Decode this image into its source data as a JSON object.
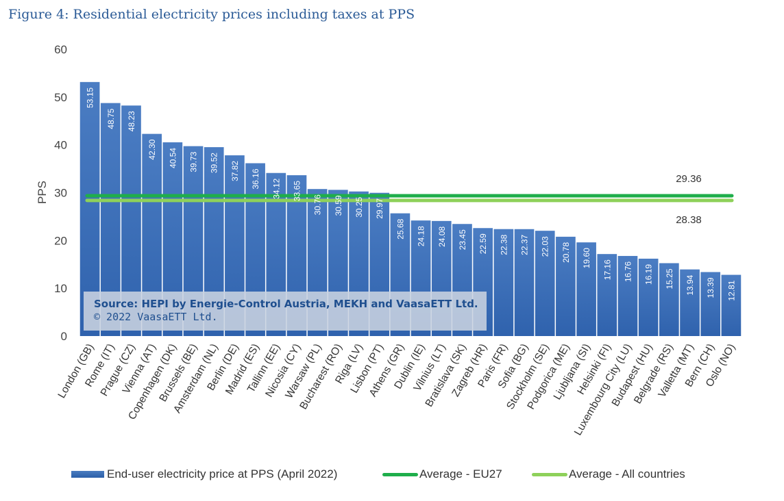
{
  "figure_title": "Figure 4: Residential electricity prices including taxes at PPS",
  "colors": {
    "bar": "#2f62ad",
    "bar_light": "#4b7dc3",
    "eu27_line": "#1fae4b",
    "all_line": "#8ed15a",
    "axis_text": "#444444",
    "source_box": "#c9d3e0",
    "source_text": "#1f4f8f"
  },
  "chart_data": {
    "type": "bar",
    "title": "",
    "xlabel": "",
    "ylabel": "PPS",
    "ylim": [
      0,
      60
    ],
    "yticks": [
      0,
      10,
      20,
      30,
      40,
      50,
      60
    ],
    "grid": false,
    "legend_position": "bottom",
    "categories": [
      "London (GB)",
      "Rome (IT)",
      "Prague (CZ)",
      "Vienna (AT)",
      "Copenhagen (DK)",
      "Brussels (BE)",
      "Amsterdam (NL)",
      "Berlin (DE)",
      "Madrid (ES)",
      "Tallinn (EE)",
      "Nicosia (CY)",
      "Warsaw (PL)",
      "Bucharest (RO)",
      "Riga (LV)",
      "Lisbon (PT)",
      "Athens (GR)",
      "Dublin (IE)",
      "Vilnius (LT)",
      "Bratislava (SK)",
      "Zagreb (HR)",
      "Paris (FR)",
      "Sofia (BG)",
      "Stockholm (SE)",
      "Podgorica (ME)",
      "Ljubljana (SI)",
      "Helsinki (FI)",
      "Luxembourg City (LU)",
      "Budapest (HU)",
      "Belgrade (RS)",
      "Valletta (MT)",
      "Bern (CH)",
      "Oslo (NO)"
    ],
    "series": [
      {
        "name": "End-user electricity price at PPS (April 2022)",
        "values": [
          53.15,
          48.75,
          48.23,
          42.3,
          40.54,
          39.73,
          39.52,
          37.82,
          36.16,
          34.12,
          33.65,
          30.76,
          30.59,
          30.25,
          29.97,
          25.68,
          24.18,
          24.08,
          23.45,
          22.59,
          22.38,
          22.37,
          22.03,
          20.78,
          19.6,
          17.16,
          16.76,
          16.19,
          15.25,
          13.94,
          13.39,
          12.81
        ],
        "labels": [
          "53.15",
          "48.75",
          "48.23",
          "42.30",
          "40.54",
          "39.73",
          "39.52",
          "37.82",
          "36.16",
          "34.12",
          "33.65",
          "30.76",
          "30.59",
          "30.25",
          "29.97",
          "25.68",
          "24.18",
          "24.08",
          "23.45",
          "22.59",
          "22.38",
          "22.37",
          "22.03",
          "20.78",
          "19.60",
          "17.16",
          "16.76",
          "16.19",
          "15.25",
          "13.94",
          "13.39",
          "12.81"
        ]
      }
    ],
    "averages": [
      {
        "name": "Average - EU27",
        "value": 29.36,
        "label": "29.36"
      },
      {
        "name": "Average - All countries",
        "value": 28.38,
        "label": "28.38"
      }
    ],
    "source_note": {
      "line1": "Source: HEPI by Energie-Control Austria, MEKH and VaasaETT Ltd.",
      "line2": "© 2022 VaasaETT Ltd."
    }
  }
}
